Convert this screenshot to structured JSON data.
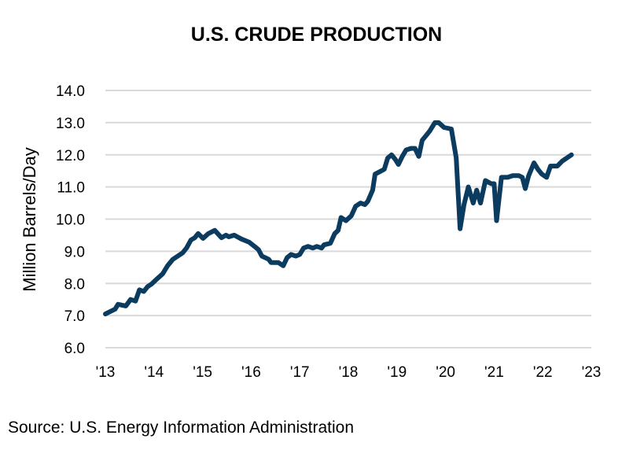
{
  "chart_data": {
    "type": "line",
    "title": "U.S. CRUDE PRODUCTION",
    "xlabel": "",
    "ylabel": "Million Barrels/Day",
    "ylim": [
      6.0,
      14.0
    ],
    "xlim": [
      2013,
      2023
    ],
    "yticks": [
      "6.0",
      "7.0",
      "8.0",
      "9.0",
      "10.0",
      "11.0",
      "12.0",
      "13.0",
      "14.0"
    ],
    "xticks": [
      "'13",
      "'14",
      "'15",
      "'16",
      "'17",
      "'18",
      "'19",
      "'20",
      "'21",
      "'22",
      "'23"
    ],
    "grid": true,
    "legend": "none",
    "line_color": "#0b3b5e",
    "series": [
      {
        "x": [
          2013.0,
          2013.2,
          2013.26,
          2013.42,
          2013.52,
          2013.62,
          2013.7,
          2013.79,
          2013.87,
          2013.95,
          2014.07,
          2014.18,
          2014.28,
          2014.39,
          2014.59,
          2014.67,
          2014.76,
          2014.84,
          2014.91,
          2015.01,
          2015.12,
          2015.25,
          2015.39,
          2015.48,
          2015.54,
          2015.65,
          2015.8,
          2015.96,
          2016.07,
          2016.15,
          2016.22,
          2016.36,
          2016.41,
          2016.56,
          2016.66,
          2016.74,
          2016.82,
          2016.92,
          2017.0,
          2017.08,
          2017.17,
          2017.27,
          2017.35,
          2017.45,
          2017.5,
          2017.63,
          2017.72,
          2017.79,
          2017.85,
          2017.95,
          2018.06,
          2018.15,
          2018.25,
          2018.34,
          2018.4,
          2018.5,
          2018.55,
          2018.68,
          2018.74,
          2018.81,
          2018.89,
          2018.97,
          2019.03,
          2019.11,
          2019.19,
          2019.29,
          2019.37,
          2019.45,
          2019.52,
          2019.6,
          2019.68,
          2019.78,
          2019.86,
          2019.97,
          2020.12,
          2020.22,
          2020.3,
          2020.38,
          2020.47,
          2020.57,
          2020.64,
          2020.72,
          2020.82,
          2020.94,
          2021.0,
          2021.05,
          2021.15,
          2021.28,
          2021.38,
          2021.51,
          2021.58,
          2021.64,
          2021.71,
          2021.82,
          2021.9,
          2021.98,
          2022.08,
          2022.16,
          2022.3,
          2022.4,
          2022.59
        ],
        "y": [
          7.05,
          7.2,
          7.35,
          7.3,
          7.5,
          7.45,
          7.8,
          7.75,
          7.9,
          7.98,
          8.15,
          8.3,
          8.55,
          8.75,
          8.95,
          9.1,
          9.35,
          9.42,
          9.55,
          9.4,
          9.55,
          9.65,
          9.42,
          9.5,
          9.45,
          9.5,
          9.38,
          9.28,
          9.15,
          9.05,
          8.85,
          8.75,
          8.65,
          8.65,
          8.55,
          8.8,
          8.9,
          8.85,
          8.9,
          9.1,
          9.15,
          9.1,
          9.15,
          9.1,
          9.2,
          9.25,
          9.55,
          9.65,
          10.05,
          9.95,
          10.1,
          10.4,
          10.5,
          10.45,
          10.55,
          10.9,
          11.4,
          11.5,
          11.55,
          11.9,
          12.0,
          11.85,
          11.7,
          11.95,
          12.15,
          12.2,
          12.2,
          11.95,
          12.45,
          12.6,
          12.75,
          13.0,
          13.0,
          12.85,
          12.8,
          11.9,
          9.7,
          10.45,
          11.0,
          10.5,
          10.9,
          10.5,
          11.2,
          11.1,
          11.1,
          9.95,
          11.3,
          11.3,
          11.35,
          11.35,
          11.3,
          10.95,
          11.35,
          11.75,
          11.55,
          11.4,
          11.3,
          11.65,
          11.65,
          11.8,
          12.0
        ]
      }
    ]
  },
  "source": "Source: U.S. Energy Information Administration"
}
